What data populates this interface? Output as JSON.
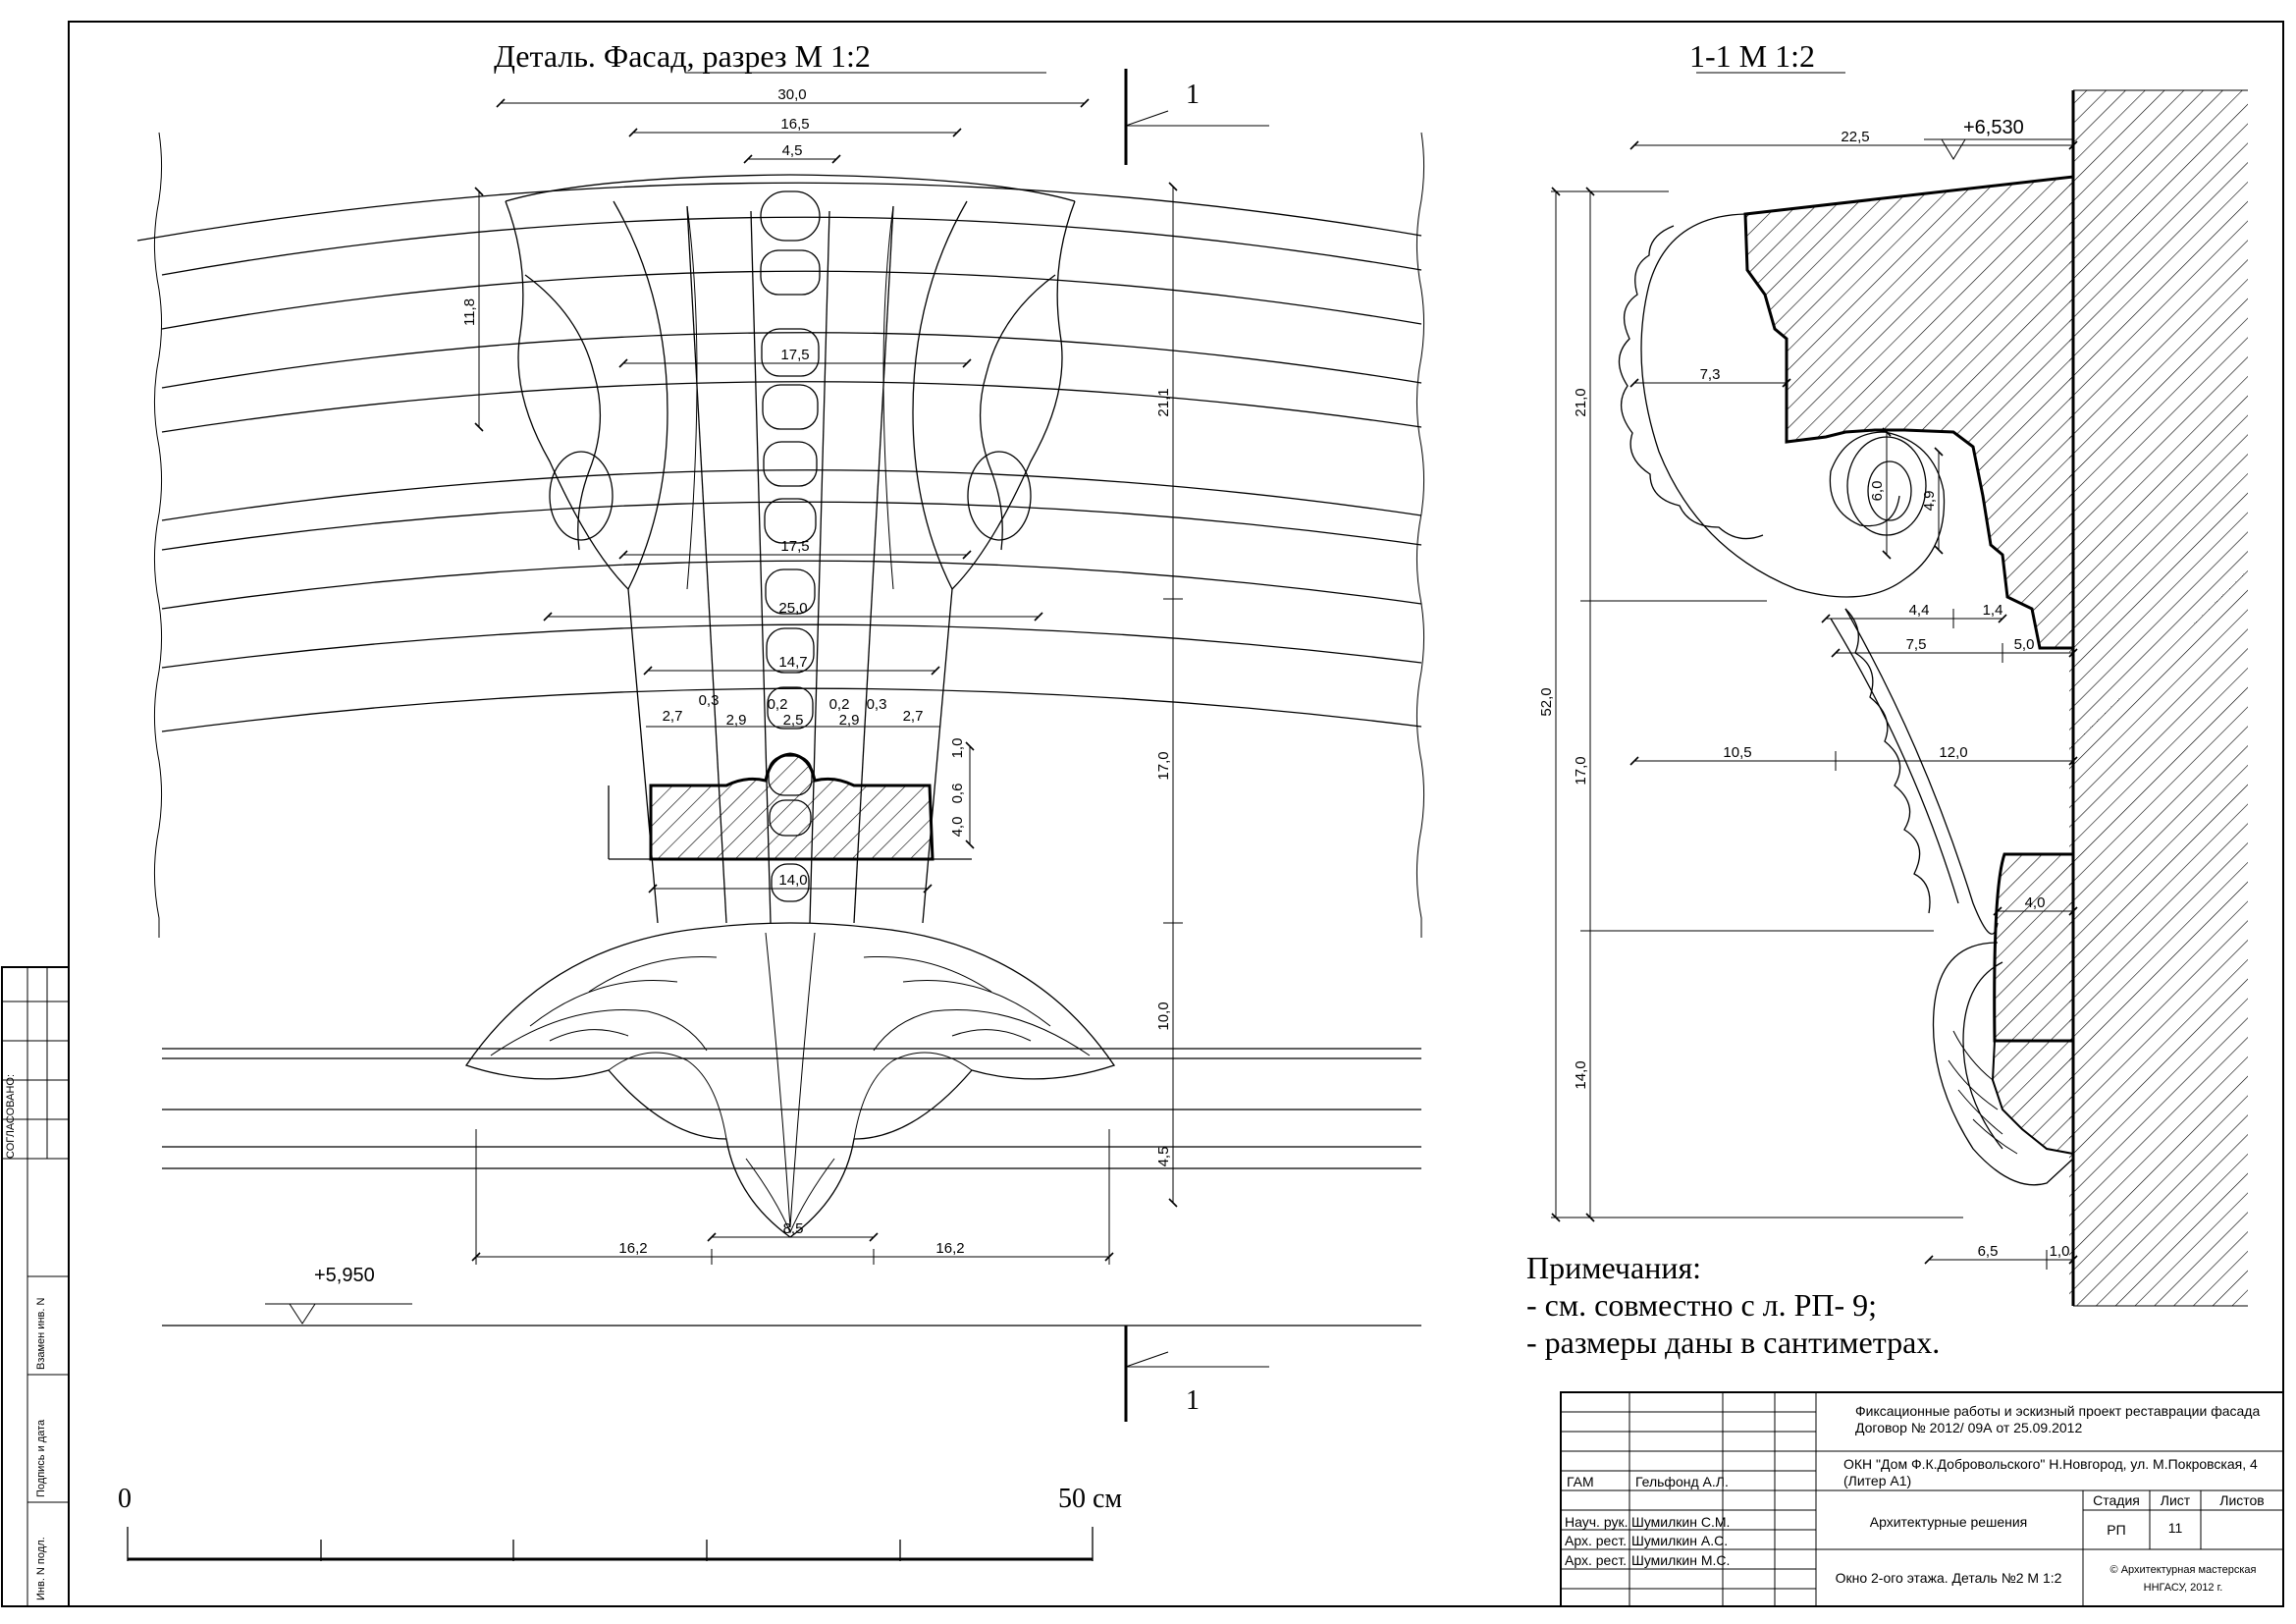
{
  "titles": {
    "facade": "Деталь. Фасад, разрез   М 1:2",
    "section": "1-1    М 1:2"
  },
  "section_marks": {
    "top": "1",
    "bottom": "1"
  },
  "levels": {
    "cornice": "+6,530",
    "bottom": "+5,950"
  },
  "facade_dims": {
    "w30": "30,0",
    "w16_5": "16,5",
    "w4_5": "4,5",
    "h11_8": "11,8",
    "w17_5a": "17,5",
    "w17_5b": "17,5",
    "w25": "25,0",
    "w14_7": "14,7",
    "r2_7a": "2,7",
    "r0_3a": "0,3",
    "r2_9a": "2,9",
    "r0_2a": "0,2",
    "r2_5": "2,5",
    "r0_2b": "0,2",
    "r2_9b": "2,9",
    "r0_3b": "0,3",
    "r2_7b": "2,7",
    "v1_0": "1,0",
    "v0_6": "0,6",
    "v4_0": "4,0",
    "w14": "14,0",
    "h21_1": "21,1",
    "h17": "17,0",
    "h10": "10,0",
    "h4_5": "4,5",
    "w16_2a": "16,2",
    "w8_5": "8,5",
    "w16_2b": "16,2"
  },
  "section_dims": {
    "w22_5": "22,5",
    "w7_3": "7,3",
    "v6_0": "6,0",
    "v4_9": "4,9",
    "w4_4": "4,4",
    "w1_4": "1,4",
    "w7_5": "7,5",
    "w5_0": "5,0",
    "w10_5": "10,5",
    "w12": "12,0",
    "w4_0": "4,0",
    "w6_5": "6,5",
    "w1_0": "1,0",
    "h52": "52,0",
    "h21": "21,0",
    "h17": "17,0",
    "h14": "14,0"
  },
  "notes": {
    "heading": "Примечания:",
    "line1": "- см. совместно с л. РП- 9;",
    "line2": "- размеры даны в сантиметрах."
  },
  "scale_bar": {
    "start": "0",
    "end": "50 см"
  },
  "side_stamp": {
    "agreed": "СОГЛАСОВАНО:",
    "replace": "Взамен инв. N",
    "sign": "Подпись и дата",
    "inv": "Инв. N подл."
  },
  "title_block": {
    "project": "Фиксационные работы и эскизный проект реставрации фасада",
    "contract": "Договор № 2012/ 09А от 25.09.2012",
    "object1": "ОКН \"Дом Ф.К.Добровольского\" Н.Новгород, ул. М.Покровская, 4",
    "object2": "(Литер А1)",
    "section_name": "Архитектурные решения",
    "sheet_name": "Окно 2-ого этажа. Деталь №2   М 1:2",
    "org1": "© Архитектурная мастерская",
    "org2": "ННГАСУ, 2012 г.",
    "h_stage": "Стадия",
    "h_sheet": "Лист",
    "h_sheets": "Листов",
    "stage": "РП",
    "sheet": "11",
    "sheets": "",
    "staff": [
      {
        "role": "ГАМ",
        "name": "Гельфонд А.Л."
      },
      {
        "role": "Науч. рук.",
        "name": "Шумилкин С.М."
      },
      {
        "role": "Арх. рест.",
        "name": "Шумилкин А.С."
      },
      {
        "role": "Арх. рест.",
        "name": "Шумилкин М.С."
      }
    ]
  }
}
